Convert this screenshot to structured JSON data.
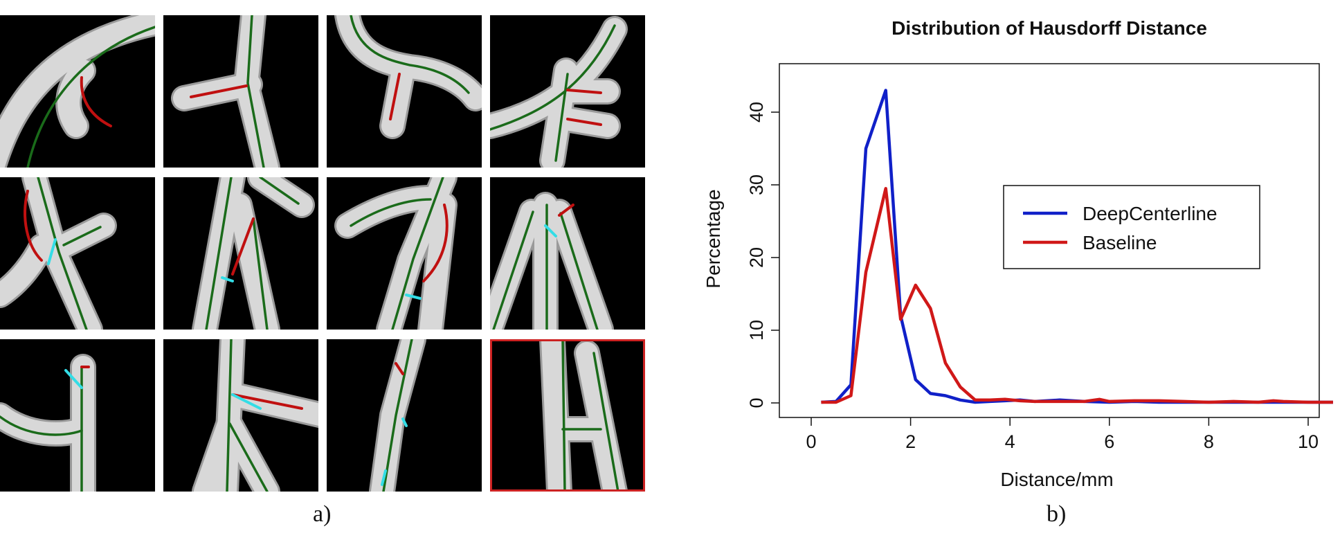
{
  "panel_a": {
    "caption": "a)",
    "tiles": [
      {
        "row": 1,
        "col": 1,
        "highlight": false
      },
      {
        "row": 1,
        "col": 2,
        "highlight": false
      },
      {
        "row": 1,
        "col": 3,
        "highlight": false
      },
      {
        "row": 1,
        "col": 4,
        "highlight": false
      },
      {
        "row": 2,
        "col": 1,
        "highlight": false
      },
      {
        "row": 2,
        "col": 2,
        "highlight": false
      },
      {
        "row": 2,
        "col": 3,
        "highlight": false
      },
      {
        "row": 2,
        "col": 4,
        "highlight": false
      },
      {
        "row": 3,
        "col": 1,
        "highlight": false
      },
      {
        "row": 3,
        "col": 2,
        "highlight": false
      },
      {
        "row": 3,
        "col": 3,
        "highlight": false
      },
      {
        "row": 3,
        "col": 4,
        "highlight": true
      }
    ],
    "colors": {
      "vessel": "#d8d8d8",
      "centerline": "#1a6b1a",
      "error": "#c01010",
      "junction": "#33dde6",
      "background": "#000000",
      "highlight": "#cc2222"
    }
  },
  "panel_b": {
    "caption": "b)"
  },
  "chart_data": {
    "type": "line",
    "title": "Distribution of Hausdorff Distance",
    "xlabel": "Distance/mm",
    "ylabel": "Percentage",
    "xlim": [
      0,
      10.5
    ],
    "ylim": [
      0,
      45
    ],
    "xticks": [
      0,
      2,
      4,
      6,
      8,
      10
    ],
    "yticks": [
      0,
      10,
      20,
      30,
      40
    ],
    "legend_position": "center-right",
    "series": [
      {
        "name": "DeepCenterline",
        "color": "#1020c8",
        "x": [
          0.2,
          0.5,
          0.8,
          1.1,
          1.5,
          1.8,
          2.1,
          2.4,
          2.7,
          3.0,
          3.3,
          3.6,
          3.9,
          4.2,
          4.5,
          5.0,
          5.5,
          6.0,
          6.5,
          7.0,
          7.5,
          8.0,
          8.5,
          9.0,
          9.5,
          10.0,
          10.5
        ],
        "y": [
          0.1,
          0.2,
          2.5,
          35.0,
          43.0,
          12.0,
          3.2,
          1.3,
          1.0,
          0.4,
          0.1,
          0.2,
          0.3,
          0.4,
          0.2,
          0.4,
          0.2,
          0.1,
          0.2,
          0.1,
          0.1,
          0.1,
          0.1,
          0.1,
          0.1,
          0.1,
          0.1
        ]
      },
      {
        "name": "Baseline",
        "color": "#d01818",
        "x": [
          0.2,
          0.5,
          0.8,
          1.1,
          1.5,
          1.8,
          2.1,
          2.4,
          2.7,
          3.0,
          3.3,
          3.6,
          3.9,
          4.2,
          4.5,
          5.0,
          5.5,
          5.8,
          6.0,
          6.5,
          7.0,
          7.5,
          8.0,
          8.5,
          9.0,
          9.3,
          9.5,
          10.0,
          10.5
        ],
        "y": [
          0.1,
          0.1,
          1.0,
          18.0,
          29.5,
          11.5,
          16.2,
          13.0,
          5.5,
          2.2,
          0.4,
          0.4,
          0.5,
          0.3,
          0.2,
          0.2,
          0.2,
          0.5,
          0.2,
          0.3,
          0.3,
          0.2,
          0.1,
          0.2,
          0.1,
          0.3,
          0.2,
          0.1,
          0.1
        ]
      }
    ]
  }
}
